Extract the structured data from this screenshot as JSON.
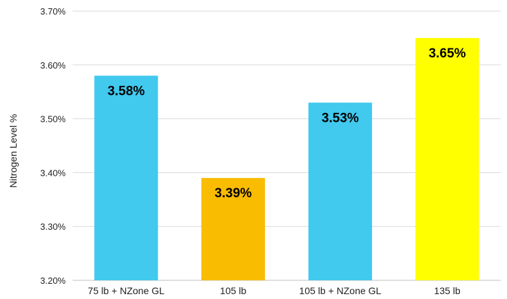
{
  "chart_data": {
    "type": "bar",
    "title": "",
    "xlabel": "",
    "ylabel": "Nitrogen Level %",
    "ylim": [
      3.2,
      3.7
    ],
    "yticks": [
      "3.20%",
      "3.30%",
      "3.40%",
      "3.50%",
      "3.60%",
      "3.70%"
    ],
    "ytick_values": [
      3.2,
      3.3,
      3.4,
      3.5,
      3.6,
      3.7
    ],
    "grid": true,
    "legend": "none",
    "categories": [
      "75 lb + NZone GL",
      "105 lb",
      "105 lb + NZone GL",
      "135 lb"
    ],
    "values": [
      3.58,
      3.39,
      3.53,
      3.65
    ],
    "data_labels": [
      "3.58%",
      "3.39%",
      "3.53%",
      "3.65%"
    ],
    "colors": [
      "#41C9EE",
      "#F9BC00",
      "#41C9EE",
      "#FFFF00"
    ]
  }
}
